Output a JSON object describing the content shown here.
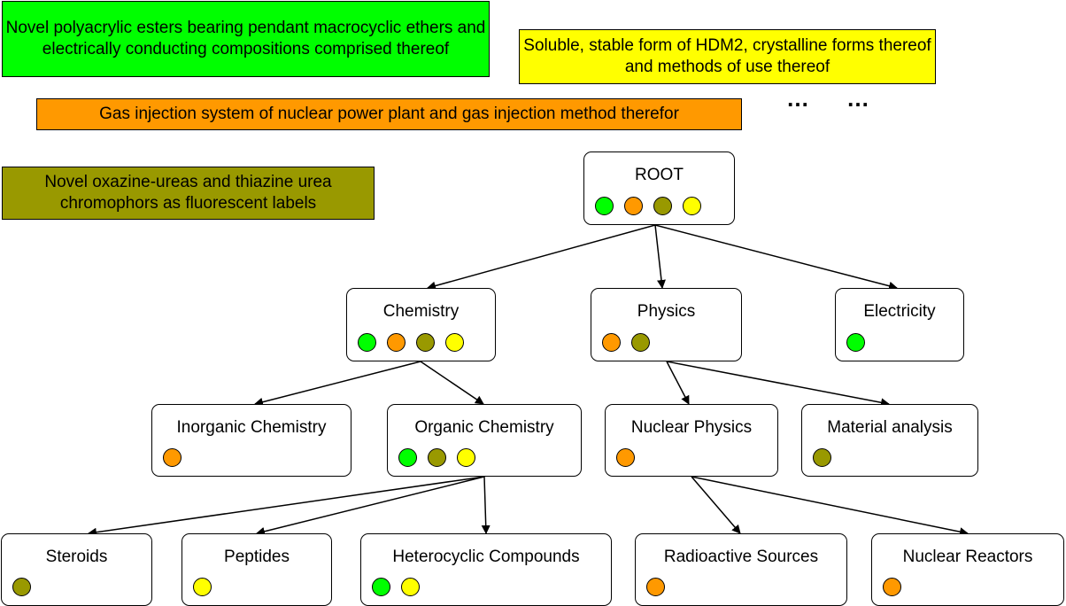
{
  "documents": {
    "green": "Novel polyacrylic esters bearing pendant macrocyclic ethers and electrically conducting compositions comprised thereof",
    "yellow": "Soluble, stable form of HDM2, crystalline forms thereof and methods of use thereof",
    "orange": "Gas injection system of nuclear power plant and gas injection method therefor",
    "olive": "Novel oxazine-ureas and thiazine urea chromophors as fluorescent labels"
  },
  "ellipsis": [
    "…",
    "…"
  ],
  "colors": {
    "green": "#00ff00",
    "orange": "#ff9900",
    "olive": "#999900",
    "yellow": "#ffff00"
  },
  "tree": {
    "root": {
      "label": "ROOT",
      "dots": [
        "green",
        "orange",
        "olive",
        "yellow"
      ]
    },
    "chemistry": {
      "label": "Chemistry",
      "dots": [
        "green",
        "orange",
        "olive",
        "yellow"
      ]
    },
    "physics": {
      "label": "Physics",
      "dots": [
        "orange",
        "olive"
      ]
    },
    "electricity": {
      "label": "Electricity",
      "dots": [
        "green"
      ]
    },
    "inorganic_chemistry": {
      "label": "Inorganic Chemistry",
      "dots": [
        "orange"
      ]
    },
    "organic_chemistry": {
      "label": "Organic Chemistry",
      "dots": [
        "green",
        "olive",
        "yellow"
      ]
    },
    "nuclear_physics": {
      "label": "Nuclear Physics",
      "dots": [
        "orange"
      ]
    },
    "material_analysis": {
      "label": "Material analysis",
      "dots": [
        "olive"
      ]
    },
    "steroids": {
      "label": "Steroids",
      "dots": [
        "olive"
      ]
    },
    "peptides": {
      "label": "Peptides",
      "dots": [
        "yellow"
      ]
    },
    "heterocyclic_compounds": {
      "label": "Heterocyclic Compounds",
      "dots": [
        "green",
        "yellow"
      ]
    },
    "radioactive_sources": {
      "label": "Radioactive Sources",
      "dots": [
        "orange"
      ]
    },
    "nuclear_reactors": {
      "label": "Nuclear Reactors",
      "dots": [
        "orange"
      ]
    }
  }
}
